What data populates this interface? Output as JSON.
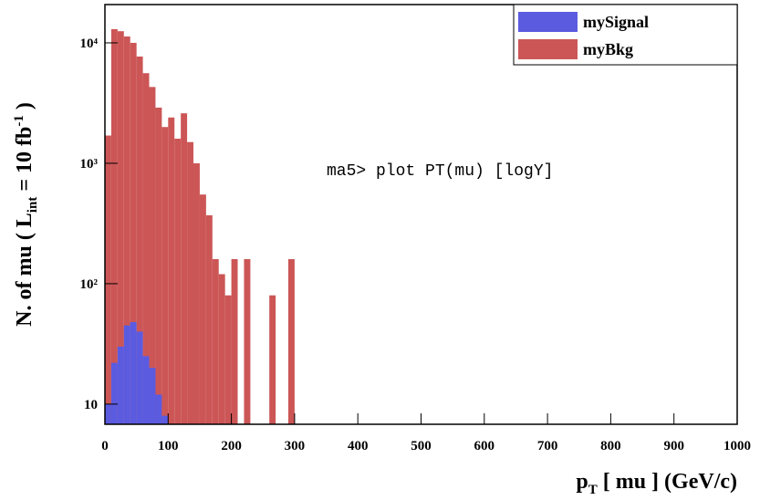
{
  "chart_data": {
    "type": "histogram",
    "xlabel_parts": [
      "p",
      "T",
      " [ mu ] (GeV/c)"
    ],
    "ylabel_parts": [
      "N. of mu ( L",
      "int",
      " = 10 fb",
      "-1",
      " )"
    ],
    "annotation": "ma5> plot PT(mu) [logY]",
    "log_y": true,
    "legend": "upper right",
    "bins": [
      0,
      10,
      20,
      30,
      40,
      50,
      60,
      70,
      80,
      90,
      100,
      110,
      120,
      130,
      140,
      150,
      160,
      170,
      180,
      190,
      200,
      210,
      220,
      230,
      240,
      250,
      260,
      270,
      280,
      290,
      300,
      310,
      320,
      330,
      340,
      350,
      360,
      370,
      380,
      390,
      400,
      410,
      420,
      430,
      440,
      450,
      460,
      470,
      480,
      490,
      500,
      510,
      520,
      530,
      540,
      550,
      560,
      570,
      580,
      590,
      600,
      610,
      620,
      630,
      640,
      650,
      660,
      670,
      680,
      690,
      700,
      710,
      720,
      730,
      740,
      750,
      760,
      770,
      780,
      790,
      800,
      810,
      820,
      830,
      840,
      850,
      860,
      870,
      880,
      890,
      900,
      910,
      920,
      930,
      940,
      950,
      960,
      970,
      980,
      990,
      1000
    ],
    "series": [
      {
        "name": "myBkg",
        "color": "#cc5656",
        "values": [
          1700,
          13000,
          12500,
          11300,
          10000,
          7700,
          5600,
          4300,
          2900,
          2000,
          2400,
          1600,
          2600,
          1500,
          1000,
          550,
          370,
          160,
          120,
          80,
          160,
          0,
          160,
          0,
          0,
          0,
          80,
          0,
          0,
          160,
          0,
          0,
          0,
          0,
          0,
          0,
          0,
          0,
          0,
          0,
          0,
          0,
          0,
          0,
          0,
          0,
          0,
          0,
          0,
          0,
          0,
          0,
          0,
          0,
          0,
          0,
          0,
          0,
          0,
          0,
          0,
          0,
          0,
          0,
          0,
          0,
          0,
          0,
          0,
          0,
          0,
          0,
          0,
          0,
          0,
          0,
          0,
          0,
          0,
          0,
          0,
          0,
          0,
          0,
          0,
          0,
          0,
          0,
          0,
          0,
          0,
          0,
          0,
          0,
          0,
          0,
          0,
          0,
          0,
          0
        ]
      },
      {
        "name": "mySignal",
        "color": "#5b5be0",
        "values": [
          10,
          22,
          30,
          45,
          48,
          40,
          25,
          20,
          12,
          8,
          0,
          0,
          0,
          0,
          0,
          0,
          0,
          0,
          0,
          0,
          0,
          0,
          0,
          0,
          0,
          0,
          0,
          0,
          0,
          0,
          0,
          0,
          0,
          0,
          0,
          0,
          0,
          0,
          0,
          0,
          0,
          0,
          0,
          0,
          0,
          0,
          0,
          0,
          0,
          0,
          0,
          0,
          0,
          0,
          0,
          0,
          0,
          0,
          0,
          0,
          0,
          0,
          0,
          0,
          0,
          0,
          0,
          0,
          0,
          0,
          0,
          0,
          0,
          0,
          0,
          0,
          0,
          0,
          0,
          0,
          0,
          0,
          0,
          0,
          0,
          0,
          0,
          0,
          0,
          0,
          0,
          0,
          0,
          0,
          0,
          0,
          0,
          0,
          0,
          0
        ]
      }
    ],
    "xlim": [
      0,
      1000
    ],
    "xticks": [
      0,
      100,
      200,
      300,
      400,
      500,
      600,
      700,
      800,
      900,
      1000
    ],
    "ylim": [
      6.8,
      20800
    ],
    "yticks": [
      10,
      {
        "value": 100,
        "label": "10²"
      },
      {
        "value": 1000,
        "label": "10³"
      },
      {
        "value": 10000,
        "label": "10⁴"
      }
    ]
  }
}
